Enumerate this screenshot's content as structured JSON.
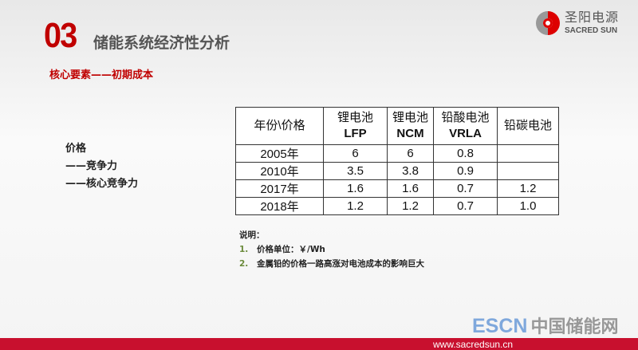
{
  "header": {
    "number": "03",
    "title": "储能系统经济性分析",
    "subtitle": "核心要素——初期成本"
  },
  "logo": {
    "cn": "圣阳电源",
    "en": "SACRED SUN"
  },
  "left": {
    "lines": [
      "价格",
      "——竞争力",
      "——核心竞争力"
    ]
  },
  "table": {
    "headers": [
      {
        "line1": "年份\\价格",
        "line2": ""
      },
      {
        "line1": "锂电池",
        "line2": "LFP"
      },
      {
        "line1": "锂电池",
        "line2": "NCM"
      },
      {
        "line1": "铅酸电池",
        "line2": "VRLA"
      },
      {
        "line1": "铅碳电池",
        "line2": ""
      }
    ],
    "rows": [
      [
        "2005年",
        "6",
        "6",
        "0.8",
        ""
      ],
      [
        "2010年",
        "3.5",
        "3.8",
        "0.9",
        ""
      ],
      [
        "2017年",
        "1.6",
        "1.6",
        "0.7",
        "1.2"
      ],
      [
        "2018年",
        "1.2",
        "1.2",
        "0.7",
        "1.0"
      ]
    ]
  },
  "notes": {
    "title": "说明：",
    "items": [
      {
        "n": "1.",
        "text": "价格单位：￥/Wh"
      },
      {
        "n": "2.",
        "text": "金属铅的价格一路高涨对电池成本的影响巨大"
      }
    ]
  },
  "footer": {
    "url": "www.sacredsun.cn",
    "watermark_en": "ESCN",
    "watermark_cn": "中国储能网"
  },
  "colors": {
    "accent": "#c00000",
    "bar": "#c8102e"
  }
}
